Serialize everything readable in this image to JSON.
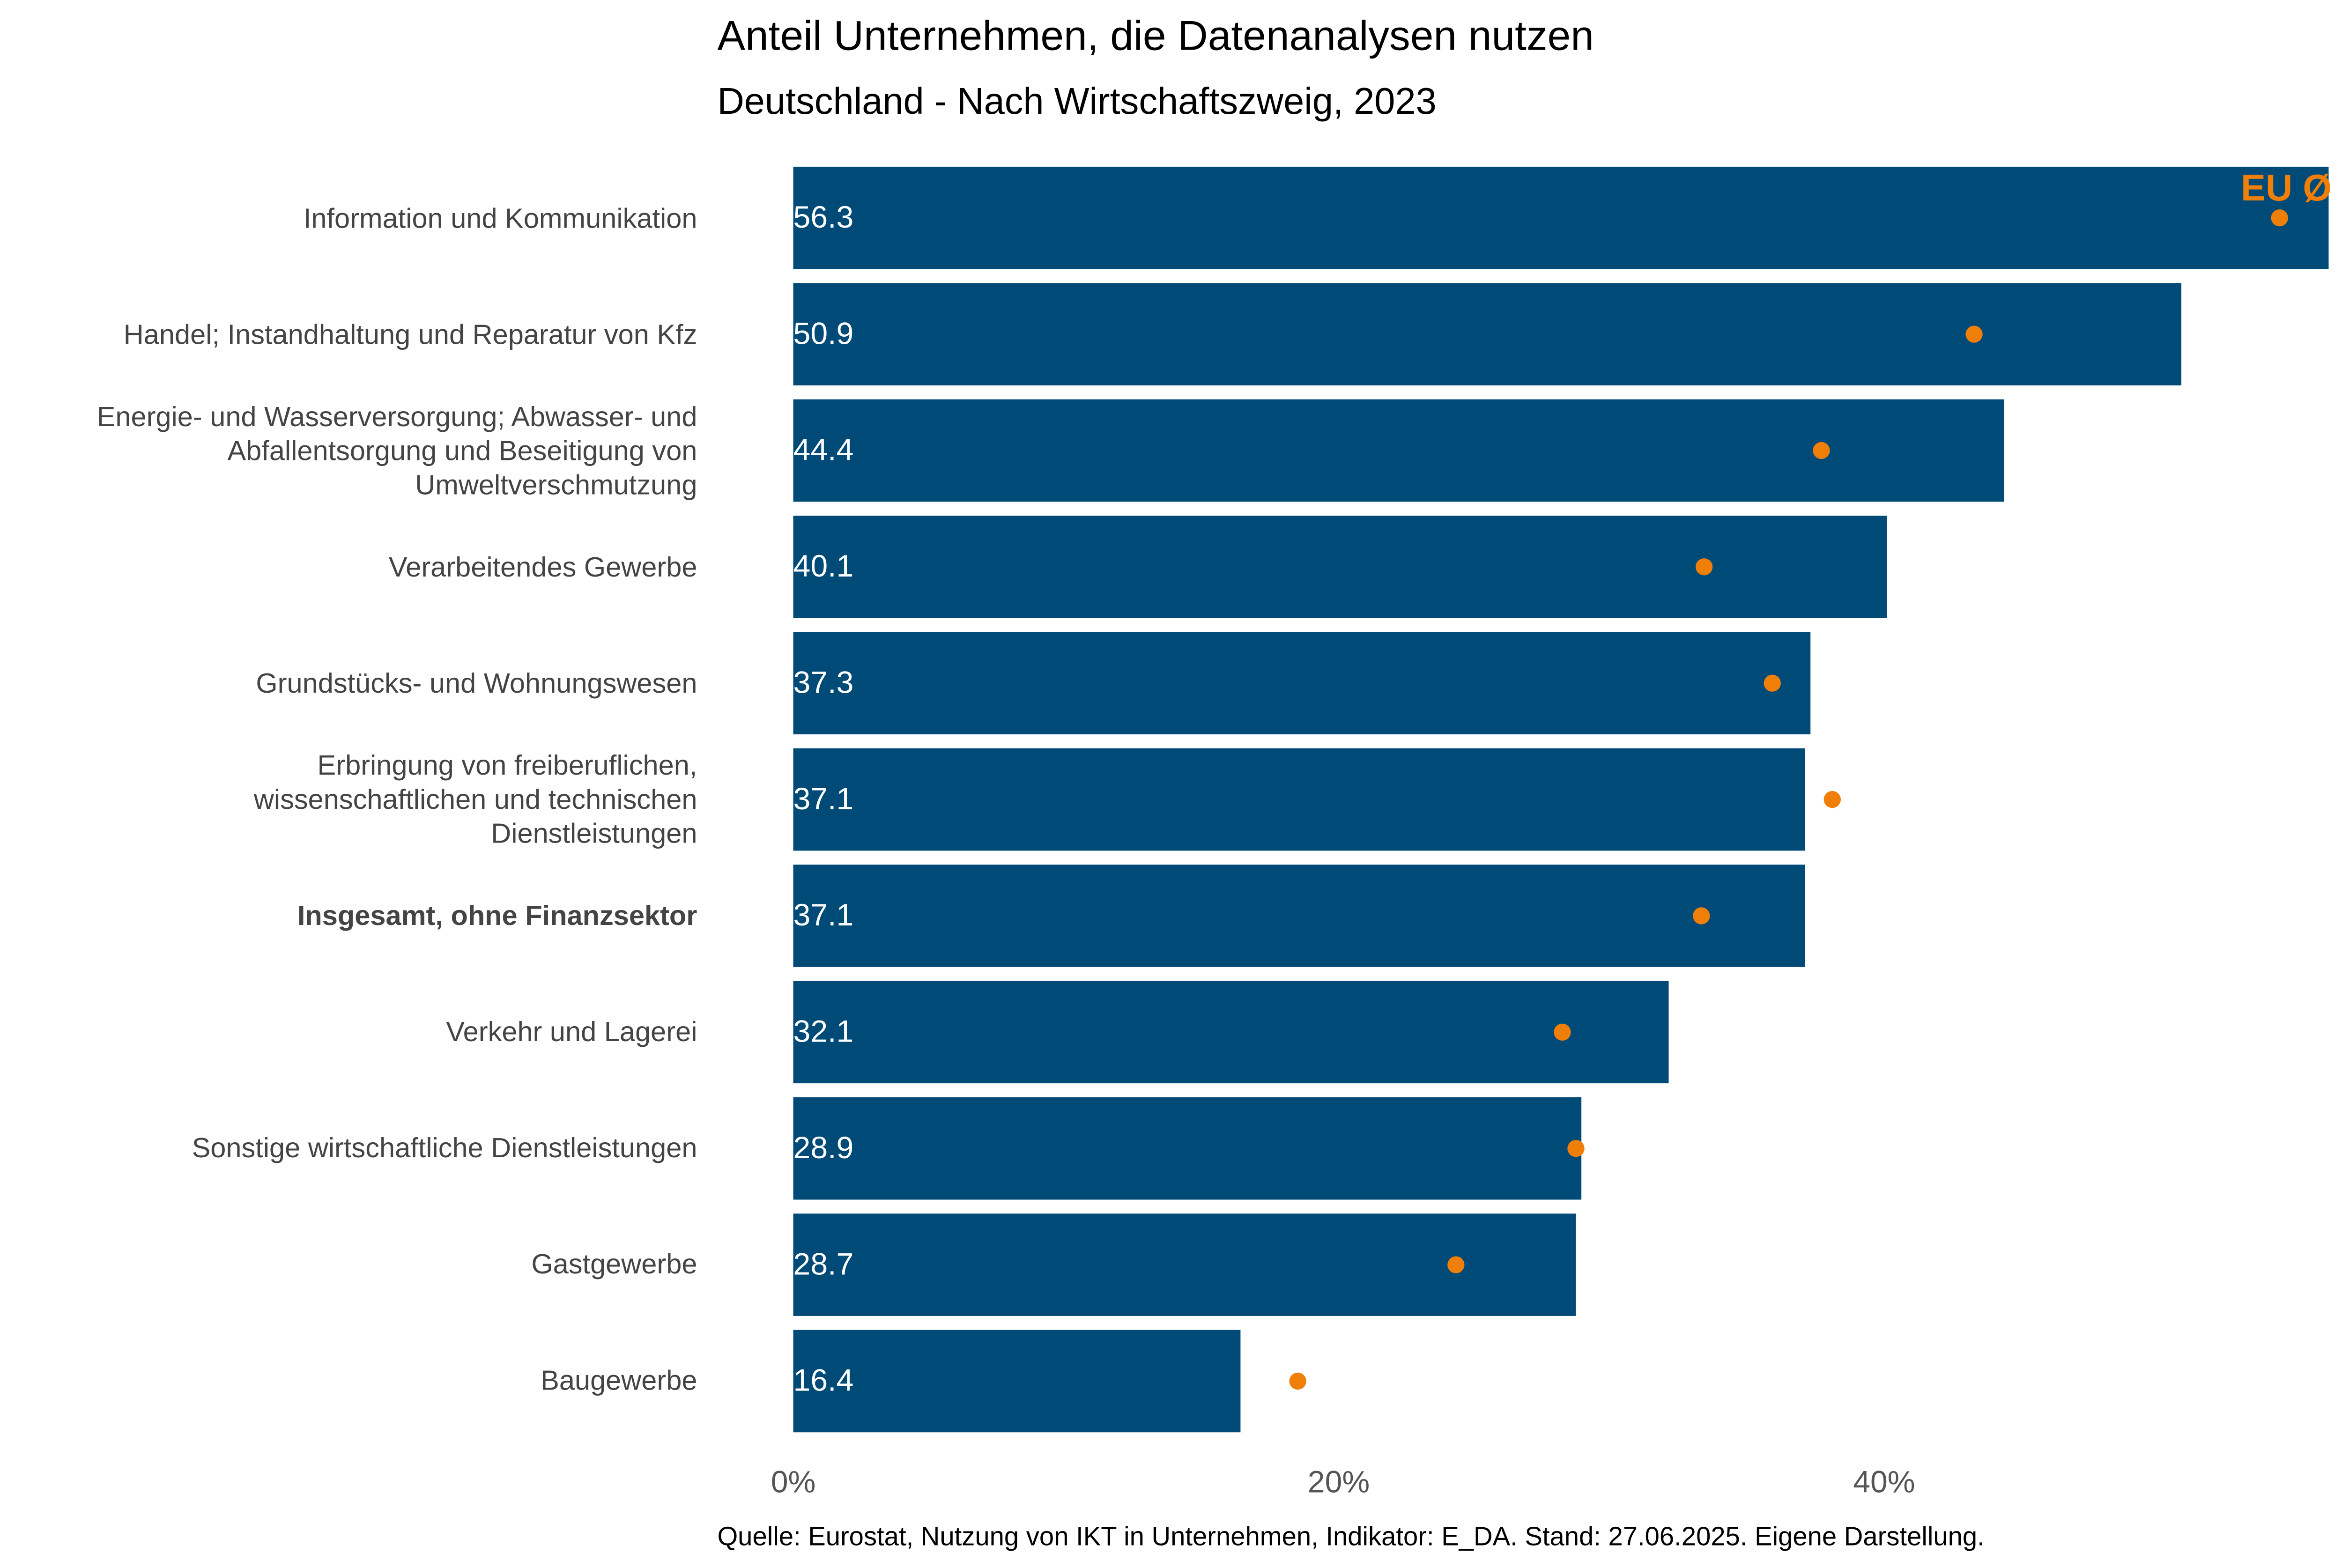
{
  "chart_data": {
    "type": "bar",
    "orientation": "horizontal",
    "title": "Anteil Unternehmen, die Datenanalysen nutzen",
    "subtitle": "Deutschland - Nach Wirtschaftszweig, 2023",
    "source": "Quelle: Eurostat, Nutzung von IKT in Unternehmen, Indikator: E_DA. Stand: 27.06.2025. Eigene Darstellung.",
    "categories": [
      "Information und Kommunikation",
      "Handel; Instandhaltung und Reparatur von Kfz",
      "Energie- und Wasserversorgung; Abwasser- und\nAbfallentsorgung und Beseitigung von\nUmweltverschmutzung",
      "Verarbeitendes Gewerbe",
      "Grundstücks- und Wohnungswesen",
      "Erbringung von freiberuflichen,\nwissenschaftlichen und technischen\nDienstleistungen",
      "Insgesamt, ohne Finanzsektor",
      "Verkehr und Lagerei",
      "Sonstige wirtschaftliche Dienstleistungen",
      "Gastgewerbe",
      "Baugewerbe"
    ],
    "bold_category_index": 6,
    "values": [
      56.3,
      50.9,
      44.4,
      40.1,
      37.3,
      37.1,
      37.1,
      32.1,
      28.9,
      28.7,
      16.4
    ],
    "color": "#004a77",
    "eu_label": "EU Ø",
    "eu_values": [
      54.5,
      43.3,
      37.7,
      33.4,
      35.9,
      38.1,
      33.3,
      28.2,
      28.7,
      24.3,
      18.5
    ],
    "eu_color": "#f07f09",
    "xlim": [
      0,
      56.3
    ],
    "xticks": [
      {
        "value": 0,
        "label": "0%"
      },
      {
        "value": 20,
        "label": "20%"
      },
      {
        "value": 40,
        "label": "40%"
      }
    ]
  }
}
